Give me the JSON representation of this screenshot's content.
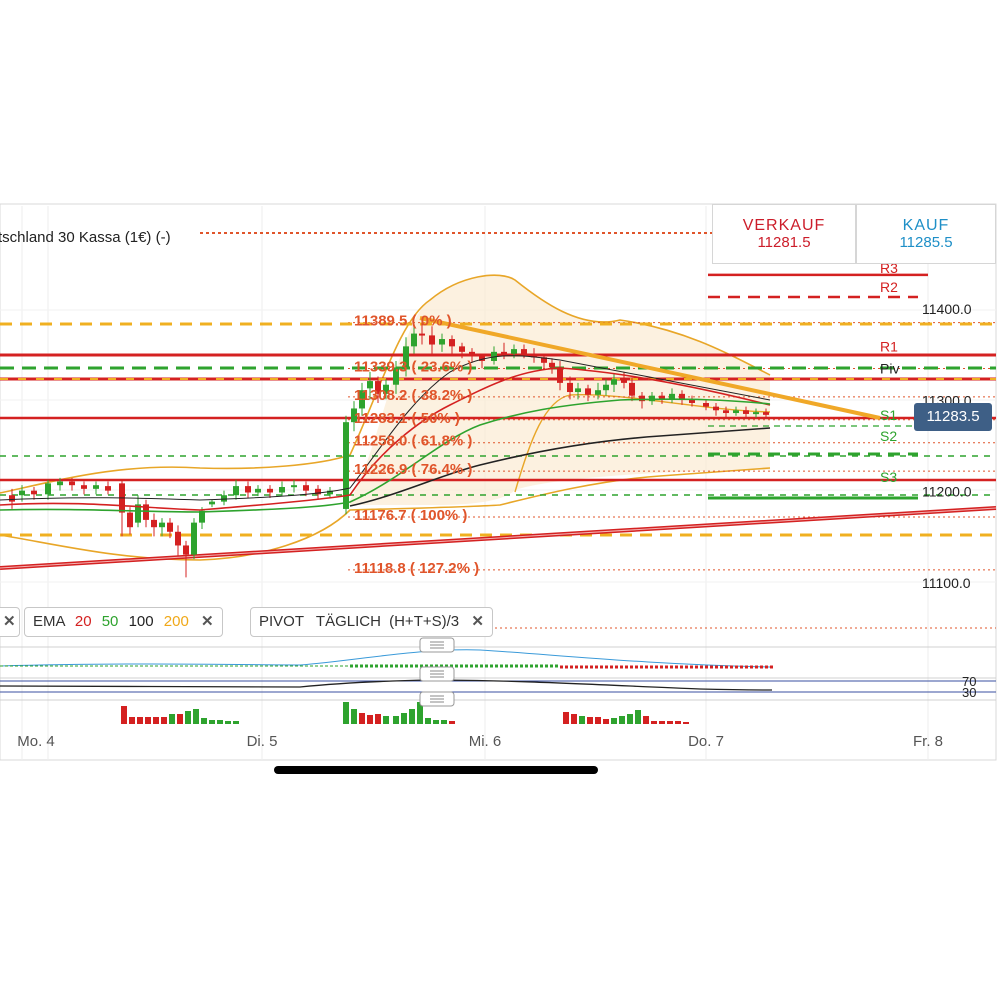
{
  "instrument_title": "tschland 30 Kassa (1€) (-)",
  "trade": {
    "sell_label": "VERKAUF",
    "sell_price": "11281.5",
    "buy_label": "KAUF",
    "buy_price": "11285.5"
  },
  "current_price": "11283.5",
  "indicators": {
    "ema": {
      "label": "EMA",
      "periods": [
        "20",
        "50",
        "100",
        "200"
      ]
    },
    "pivot": {
      "label": "PIVOT",
      "mode": "TÄGLICH",
      "formula": "(H+T+S)/3"
    },
    "close_glyph": "✕"
  },
  "oscillator_levels": [
    "70",
    "30"
  ],
  "chart_data": {
    "type": "candlestick",
    "x_ticks": [
      "Mo. 4",
      "Di. 5",
      "Mi. 6",
      "Do. 7",
      "Fr. 8"
    ],
    "y_ticks": [
      "11400.0",
      "11300.0",
      "11200.0",
      "11100.0"
    ],
    "ylim": [
      11077,
      11535
    ],
    "pivot_levels": [
      {
        "label": "R3",
        "value": 11444
      },
      {
        "label": "R2",
        "value": 11423
      },
      {
        "label": "R1",
        "value": 11358
      },
      {
        "label": "Piv",
        "value": 11334
      },
      {
        "label": "S1",
        "value": 11283
      },
      {
        "label": "S2",
        "value": 11260
      },
      {
        "label": "S3",
        "value": 11215
      }
    ],
    "fibonacci": [
      {
        "label": "11389.5 ( 0% )",
        "value": 11389.5
      },
      {
        "label": "11339.3 ( 23.6% )",
        "value": 11339.3
      },
      {
        "label": "11308.2 ( 38.2% )",
        "value": 11308.2
      },
      {
        "label": "11283.1 ( 50% )",
        "value": 11283.1
      },
      {
        "label": "11258.0 ( 61.8% )",
        "value": 11258.0
      },
      {
        "label": "11226.9 ( 76.4% )",
        "value": 11226.9
      },
      {
        "label": "11176.7 ( 100% )",
        "value": 11176.7
      },
      {
        "label": "11118.8 ( 127.2% )",
        "value": 11118.8
      }
    ],
    "colors": {
      "up": "#2ea32e",
      "down": "#d42121",
      "ema20": "#d42121",
      "ema50": "#2ea32e",
      "ema100": "#222222",
      "ema200": "#f0a818",
      "fib": "#e0552b",
      "bollinger": "#e8a628"
    }
  }
}
